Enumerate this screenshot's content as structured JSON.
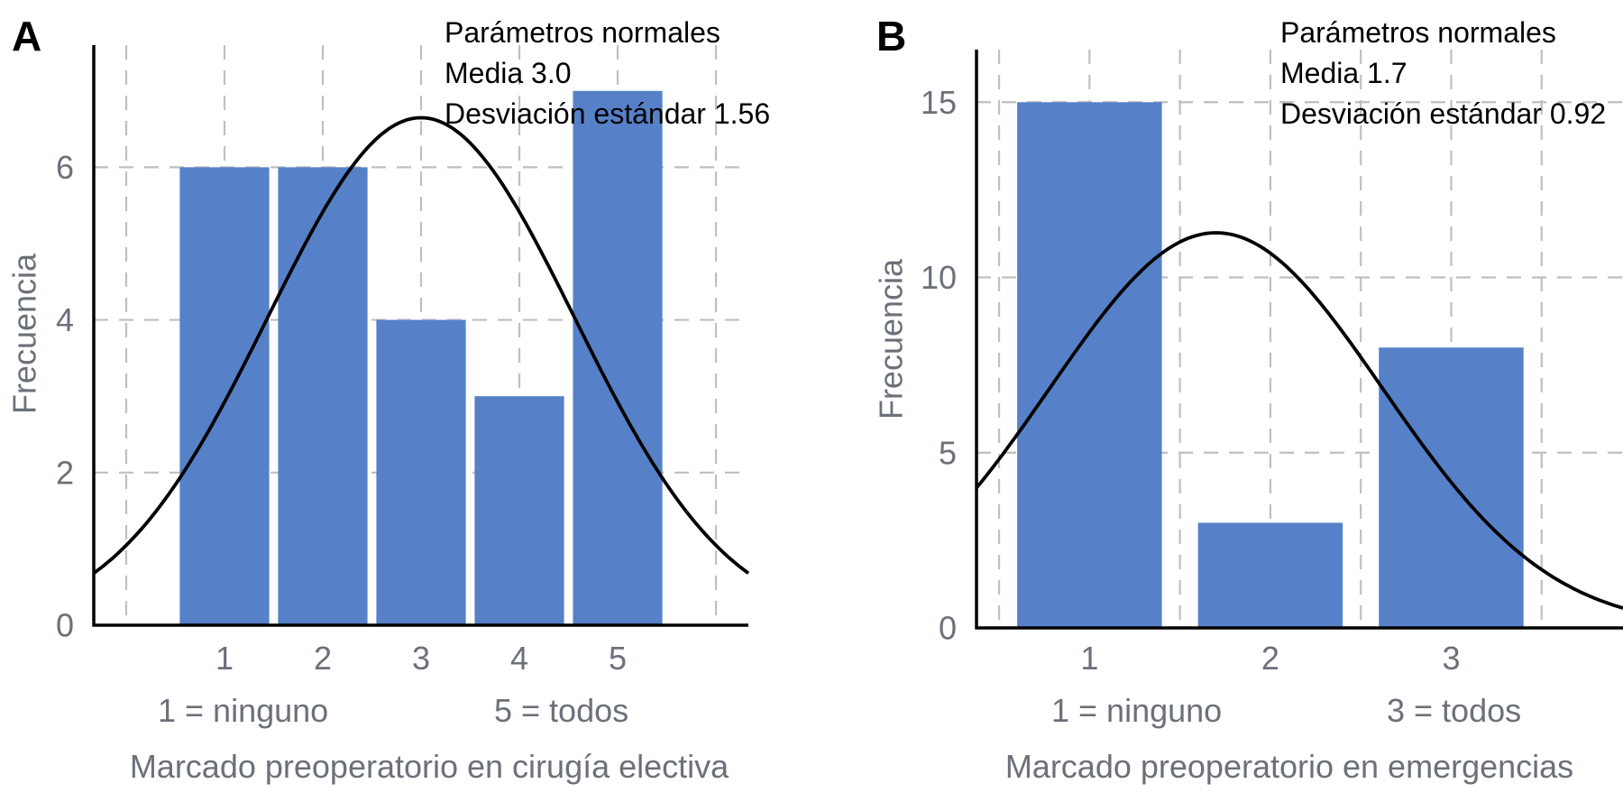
{
  "chart_data": [
    {
      "type": "bar",
      "panel": "A",
      "title": "",
      "categories": [
        "1",
        "2",
        "3",
        "4",
        "5"
      ],
      "values": [
        6,
        6,
        4,
        3,
        7
      ],
      "xlabel": "Marcado preoperatorio en cirugía electiva",
      "ylabel": "Frecuencia",
      "x_ticks": [
        "1",
        "2",
        "3",
        "4",
        "5"
      ],
      "y_ticks": [
        "0",
        "2",
        "4",
        "6"
      ],
      "ylim": [
        0,
        7.6
      ],
      "xlim": [
        -0.33,
        6.33
      ],
      "scale_notes": [
        "1 = ninguno",
        "5 = todos"
      ],
      "grid": true,
      "normal_curve": {
        "label_lines": [
          "Parámetros normales",
          "Media 3.0",
          "Desviación estándar 1.56"
        ],
        "mean": 3.0,
        "sd": 1.56,
        "n": 26
      }
    },
    {
      "type": "bar",
      "panel": "B",
      "title": "",
      "categories": [
        "1",
        "2",
        "3"
      ],
      "values": [
        15,
        3,
        8
      ],
      "xlabel": "Marcado preoperatorio en emergencias",
      "ylabel": "Frecuencia",
      "x_ticks": [
        "1",
        "2",
        "3"
      ],
      "y_ticks": [
        "0",
        "5",
        "10",
        "15"
      ],
      "ylim": [
        0,
        16.5
      ],
      "xlim": [
        0.375,
        3.95
      ],
      "scale_notes": [
        "1 = ninguno",
        "3 = todos"
      ],
      "grid": true,
      "normal_curve": {
        "label_lines": [
          "Parámetros normales",
          "Media 1.7",
          "Desviación estándar 0.92"
        ],
        "mean": 1.7,
        "sd": 0.92,
        "n": 26
      }
    }
  ],
  "colors": {
    "bar": "#5681c8",
    "curve": "#000000",
    "grid": "#bfbfbf",
    "text_gray": "#6b7079"
  }
}
